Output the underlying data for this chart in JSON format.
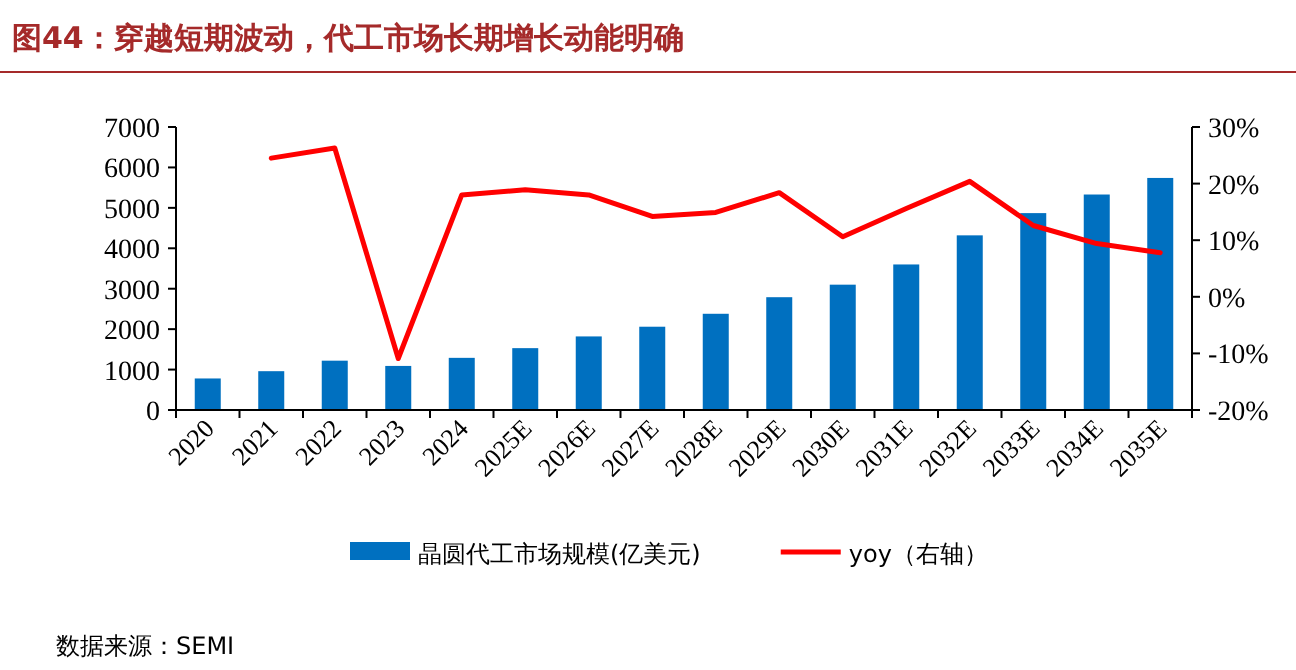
{
  "chart_data": {
    "type": "bar",
    "title": "图44：穿越短期波动，代工市场长期增长动能明确",
    "categories": [
      "2020",
      "2021",
      "2022",
      "2023",
      "2024",
      "2025E",
      "2026E",
      "2027E",
      "2028E",
      "2029E",
      "2030E",
      "2031E",
      "2032E",
      "2033E",
      "2034E",
      "2035E"
    ],
    "series": [
      {
        "name": "晶圆代工市场规模(亿美元)",
        "color": "#0070c0",
        "values": [
          780,
          960,
          1220,
          1090,
          1290,
          1530,
          1820,
          2060,
          2380,
          2790,
          3100,
          3600,
          4320,
          4870,
          5330,
          5740
        ]
      },
      {
        "name": "yoy（右轴）",
        "type": "line",
        "axis": "y2",
        "color": "#ff0000",
        "values": [
          null,
          24.5,
          26.3,
          -10.9,
          18.0,
          18.9,
          18.0,
          14.2,
          14.9,
          18.4,
          10.6,
          15.6,
          20.4,
          12.6,
          9.4,
          7.8
        ]
      }
    ],
    "ylim": [
      0,
      7000
    ],
    "yticks": [
      0,
      1000,
      2000,
      3000,
      4000,
      5000,
      6000,
      7000
    ],
    "y2lim": [
      -20,
      30
    ],
    "y2ticks": [
      {
        "value": -20,
        "label": "-20%"
      },
      {
        "value": -10,
        "label": "-10%"
      },
      {
        "value": 0,
        "label": "0%"
      },
      {
        "value": 10,
        "label": "10%"
      },
      {
        "value": 20,
        "label": "20%"
      },
      {
        "value": 30,
        "label": "30%"
      }
    ],
    "grid": false,
    "legend": "bottom",
    "marker": "none",
    "annotations": [
      "数据来源：SEMI"
    ]
  }
}
